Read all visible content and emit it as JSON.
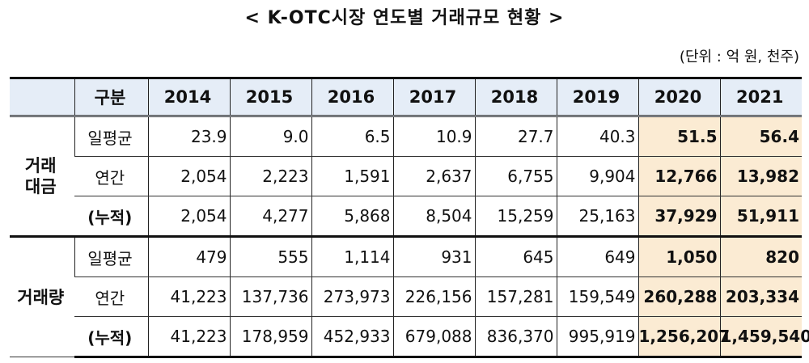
{
  "title": "< K-OTC시장 연도별 거래규모 현황 >",
  "unit": "(단위 : 억 원, 천주)",
  "table": {
    "header": [
      "구분",
      "2014",
      "2015",
      "2016",
      "2017",
      "2018",
      "2019",
      "2020",
      "2021"
    ],
    "highlight_color": "#fbebd3",
    "header_color": "#e5edf7",
    "groups": [
      {
        "label": "거래\n대금",
        "rows": [
          {
            "label": "일평균",
            "values": [
              "23.9",
              "9.0",
              "6.5",
              "10.9",
              "27.7",
              "40.3",
              "51.5",
              "56.4"
            ]
          },
          {
            "label": "연간",
            "values": [
              "2,054",
              "2,223",
              "1,591",
              "2,637",
              "6,755",
              "9,904",
              "12,766",
              "13,982"
            ]
          },
          {
            "label": "(누적)",
            "values": [
              "2,054",
              "4,277",
              "5,868",
              "8,504",
              "15,259",
              "25,163",
              "37,929",
              "51,911"
            ]
          }
        ]
      },
      {
        "label": "거래량",
        "rows": [
          {
            "label": "일평균",
            "values": [
              "479",
              "555",
              "1,114",
              "931",
              "645",
              "649",
              "1,050",
              "820"
            ]
          },
          {
            "label": "연간",
            "values": [
              "41,223",
              "137,736",
              "273,973",
              "226,156",
              "157,281",
              "159,549",
              "260,288",
              "203,334"
            ]
          },
          {
            "label": "(누적)",
            "values": [
              "41,223",
              "178,959",
              "452,933",
              "679,088",
              "836,370",
              "995,919",
              "1,256,207",
              "1,459,540"
            ]
          }
        ]
      }
    ]
  }
}
